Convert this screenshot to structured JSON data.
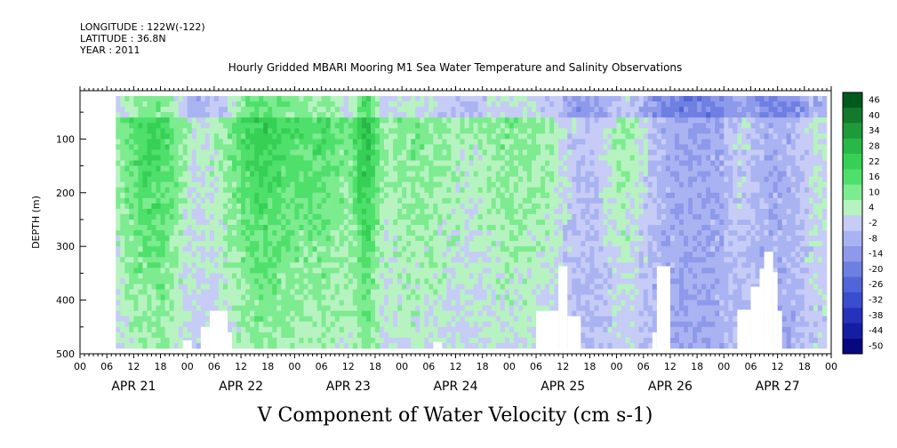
{
  "header": {
    "longitude": "LONGITUDE : 122W(-122)",
    "latitude": "LATITUDE : 36.8N",
    "year": "YEAR : 2011"
  },
  "chart_data": {
    "type": "heatmap",
    "title": "Hourly Gridded MBARI Mooring M1 Sea Water Temperature and Salinity Observations",
    "subtitle": "V Component of Water Velocity (cm s-1)",
    "xlabel": "",
    "ylabel": "DEPTH (m)",
    "x_range_hours": [
      0,
      168
    ],
    "y_range": [
      500,
      10
    ],
    "y_ticks": [
      100,
      200,
      300,
      400,
      500
    ],
    "y_tick_labels": [
      "100",
      "200",
      "300",
      "400",
      "500"
    ],
    "x_hour_labels": [
      "00",
      "06",
      "12",
      "18",
      "00",
      "06",
      "12",
      "18",
      "00",
      "06",
      "12",
      "18",
      "00",
      "06",
      "12",
      "18",
      "00",
      "06",
      "12",
      "18",
      "00",
      "06",
      "12",
      "18",
      "00",
      "06",
      "12",
      "18",
      "00"
    ],
    "date_labels": [
      "APR 21",
      "APR 22",
      "APR 23",
      "APR 24",
      "APR 25",
      "APR 26",
      "APR 27"
    ],
    "colorbar": {
      "levels": [
        "46",
        "40",
        "34",
        "28",
        "22",
        "16",
        "10",
        "4",
        "-2",
        "-8",
        "-14",
        "-20",
        "-26",
        "-32",
        "-38",
        "-44",
        "-50"
      ],
      "range": [
        -50,
        52
      ]
    },
    "data_extent": {
      "start_hour": 8,
      "end_hour": 167,
      "depth_top": 20,
      "depth_bottom": 490
    },
    "bands": [
      {
        "center_hour": 11,
        "width_hours": 5,
        "strength": 0.6
      },
      {
        "center_hour": 16,
        "width_hours": 5,
        "strength": 0.95
      },
      {
        "center_hour": 20,
        "width_hours": 3,
        "strength": 0.5
      },
      {
        "center_hour": 34,
        "width_hours": 6,
        "strength": 0.7
      },
      {
        "center_hour": 40,
        "width_hours": 4,
        "strength": 0.85
      },
      {
        "center_hour": 46,
        "width_hours": 5,
        "strength": 0.75
      },
      {
        "center_hour": 53,
        "width_hours": 5,
        "strength": 0.8
      },
      {
        "center_hour": 58,
        "width_hours": 4,
        "strength": 0.55
      },
      {
        "center_hour": 64,
        "width_hours": 2,
        "strength": 1.4
      },
      {
        "center_hour": 72,
        "width_hours": 5,
        "strength": 0.75
      },
      {
        "center_hour": 82,
        "width_hours": 6,
        "strength": 0.7
      },
      {
        "center_hour": 94,
        "width_hours": 4,
        "strength": 0.7
      },
      {
        "center_hour": 103,
        "width_hours": 5,
        "strength": 0.8
      },
      {
        "center_hour": 122,
        "width_hours": 4,
        "strength": 0.9
      },
      {
        "center_hour": 148,
        "width_hours": 3,
        "strength": 0.5
      },
      {
        "center_hour": 165,
        "width_hours": 3,
        "strength": 0.6
      }
    ],
    "blank_regions": [
      {
        "hour_from": 23,
        "hour_to": 25,
        "depth_top": 475
      },
      {
        "hour_from": 27,
        "hour_to": 29,
        "depth_top": 450
      },
      {
        "hour_from": 29,
        "hour_to": 33,
        "depth_top": 420
      },
      {
        "hour_from": 33,
        "hour_to": 34,
        "depth_top": 460
      },
      {
        "hour_from": 79,
        "hour_to": 81,
        "depth_top": 478
      },
      {
        "hour_from": 102,
        "hour_to": 107,
        "depth_top": 420
      },
      {
        "hour_from": 107,
        "hour_to": 109,
        "depth_top": 337
      },
      {
        "hour_from": 109,
        "hour_to": 112,
        "depth_top": 430
      },
      {
        "hour_from": 128,
        "hour_to": 129,
        "depth_top": 460
      },
      {
        "hour_from": 129,
        "hour_to": 132,
        "depth_top": 337
      },
      {
        "hour_from": 147,
        "hour_to": 150,
        "depth_top": 418
      },
      {
        "hour_from": 150,
        "hour_to": 152,
        "depth_top": 375
      },
      {
        "hour_from": 152,
        "hour_to": 153,
        "depth_top": 342
      },
      {
        "hour_from": 153,
        "hour_to": 155,
        "depth_top": 310
      },
      {
        "hour_from": 155,
        "hour_to": 156,
        "depth_top": 348
      },
      {
        "hour_from": 156,
        "hour_to": 157,
        "depth_top": 420
      }
    ]
  }
}
